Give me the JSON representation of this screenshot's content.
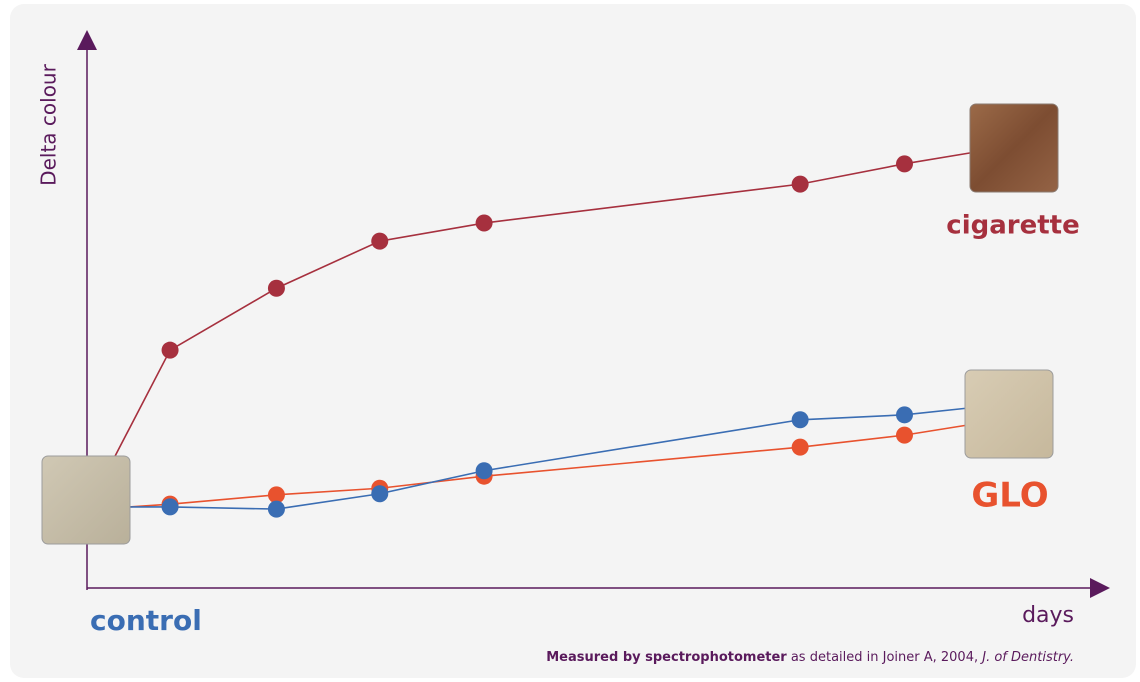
{
  "chart_data": {
    "type": "line",
    "y_label": "Delta colour",
    "x_label": "days",
    "footnote": {
      "bold": "Measured by spectrophotometer",
      "plain": "as detailed in Joiner A, 2004,",
      "italic": "J. of Dentistry."
    },
    "xlim": [
      0,
      100
    ],
    "ylim": [
      0,
      100
    ],
    "series": [
      {
        "name": "cigarette",
        "color": "#a6303e",
        "x": [
          2.3,
          8.2,
          18.7,
          28.9,
          39.2,
          70.4,
          80.7,
          87.2
        ],
        "values": [
          22.4,
          43.4,
          54.7,
          63.3,
          66.6,
          73.7,
          77.4,
          79.4
        ]
      },
      {
        "name": "GLO",
        "color": "#e8522e",
        "x": [
          4.2,
          8.2,
          18.7,
          28.9,
          39.2,
          70.4,
          80.7,
          86.8
        ],
        "values": [
          14.8,
          15.3,
          17.0,
          18.2,
          20.4,
          25.7,
          27.9,
          29.7
        ]
      },
      {
        "name": "control",
        "color": "#3a6db3",
        "x": [
          4.2,
          8.2,
          18.7,
          28.9,
          39.2,
          70.4,
          80.7,
          86.8
        ],
        "values": [
          14.8,
          14.8,
          14.4,
          17.2,
          21.4,
          30.7,
          31.6,
          32.8
        ]
      }
    ]
  }
}
